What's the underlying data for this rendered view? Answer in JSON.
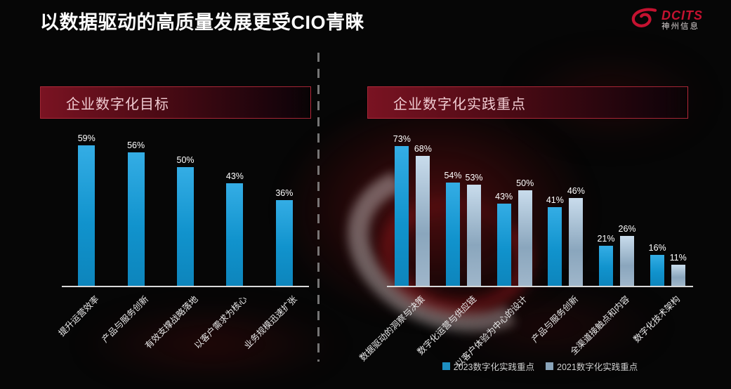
{
  "title": "以数据驱动的高质量发展更受CIO青睐",
  "logo": {
    "icon": "swirl-icon",
    "brand": "DCITS",
    "name": "神州信息"
  },
  "colors": {
    "background": "#060606",
    "bar_blue": "#1b9cd6",
    "bar_gray": "#9fb6cc",
    "banner_red": "#7a1322",
    "accent_red": "#c41230",
    "axis_line": "#d9d9d9"
  },
  "left_chart": {
    "header": "企业数字化目标"
  },
  "right_chart": {
    "header": "企业数字化实践重点"
  },
  "chart_data": [
    {
      "type": "bar",
      "title": "企业数字化目标",
      "categories": [
        "提升运营效率",
        "产品与服务创新",
        "有效支撑战略落地",
        "以客户需求为核心",
        "业务规模迅速扩张"
      ],
      "values": [
        59,
        56,
        50,
        43,
        36
      ],
      "unit": "%",
      "ylim": [
        0,
        62
      ],
      "bar_color": "#1b9cd6",
      "grid": false,
      "value_labels": true
    },
    {
      "type": "bar",
      "title": "企业数字化实践重点",
      "categories": [
        "数据驱动的洞察与决策",
        "数字化运营与供应链",
        "以客户体验为中心的设计",
        "产品与服务创新",
        "全渠道接触点和内容",
        "数字化技术架构"
      ],
      "series": [
        {
          "name": "2023数字化实践重点",
          "values": [
            73,
            54,
            43,
            41,
            21,
            16
          ],
          "color": "#1b9cd6"
        },
        {
          "name": "2021数字化实践重点",
          "values": [
            68,
            53,
            50,
            46,
            26,
            11
          ],
          "color": "#9fb6cc"
        }
      ],
      "unit": "%",
      "ylim": [
        0,
        76
      ],
      "grid": false,
      "value_labels": true,
      "legend_position": "bottom"
    }
  ]
}
